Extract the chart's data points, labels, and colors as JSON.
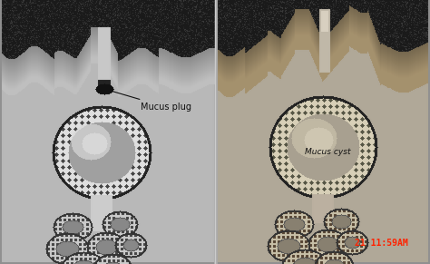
{
  "figsize": [
    4.74,
    2.91
  ],
  "dpi": 100,
  "bg_color_left": "#b8b8b8",
  "bg_color_right": "#b0a898",
  "tissue_dark": "#1a1a1a",
  "tissue_mid": "#3a3a3a",
  "epithelium_white": "#e8e8e8",
  "epithelium_dot": "#333333",
  "cyst_fill_left": "#b8b8b8",
  "cyst_highlight": "#e0e0e0",
  "cyst_fill_right": "#c0b8a0",
  "left_label": "Mucus plug",
  "right_label": "Mucus cyst",
  "timestamp": "21 11:59AM",
  "timestamp_color": "#ff2200",
  "divider_color": "#cccccc",
  "border_color": "#888888",
  "overall_bg": "#909090"
}
